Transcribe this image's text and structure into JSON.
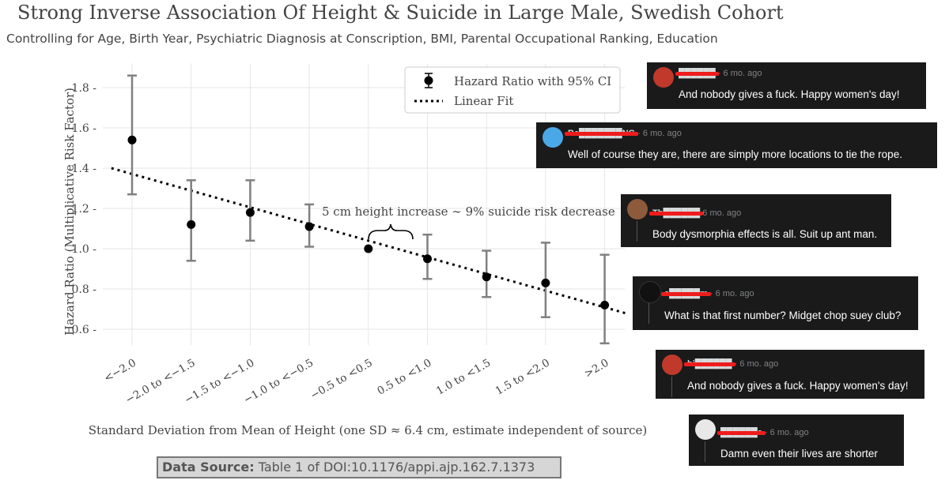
{
  "chart_data": {
    "type": "scatter",
    "title": "Strong Inverse Association Of Height & Suicide in Large Male, Swedish Cohort",
    "subtitle": "Controlling for Age, Birth Year, Psychiatric Diagnosis at Conscription, BMI, Parental Occupational Ranking, Education",
    "xlabel": "Standard Deviation from Mean of Height (one SD ≈ 6.4 cm, estimate independent of source)",
    "ylabel": "Hazard Ratio (Multiplicative Risk Factor)",
    "categories": [
      "<−2.0",
      "−2.0 to <−1.5",
      "−1.5 to <−1.0",
      "−1.0 to <−0.5",
      "−0.5 to <0.5",
      "0.5 to <1.0",
      "1.0 to <1.5",
      "1.5 to <2.0",
      ">2.0"
    ],
    "yticks": [
      "0.6",
      "0.8",
      "1.0",
      "1.2",
      "1.4",
      "1.6",
      "1.8"
    ],
    "ylim": [
      0.52,
      1.92
    ],
    "grid": true,
    "series": [
      {
        "name": "Hazard Ratio with 95% CI",
        "values": [
          1.54,
          1.12,
          1.18,
          1.11,
          1.0,
          0.95,
          0.86,
          0.83,
          0.72
        ],
        "ci_low": [
          1.27,
          0.94,
          1.04,
          1.01,
          1.0,
          0.85,
          0.76,
          0.66,
          0.53
        ],
        "ci_high": [
          1.86,
          1.34,
          1.34,
          1.22,
          1.0,
          1.07,
          0.99,
          1.03,
          0.97
        ],
        "color": "#000000",
        "errorbar_color": "#808080"
      },
      {
        "name": "Linear Fit",
        "style": "dotted",
        "color": "#000000",
        "fit_start": {
          "x": -0.35,
          "y": 1.4
        },
        "fit_end": {
          "x": 8.35,
          "y": 0.68
        }
      }
    ],
    "legend_position": "top-right",
    "annotation": "5 cm height increase ∼ 9% suicide risk decrease",
    "data_source_label": "Data Source:",
    "data_source": "Table 1 of DOI:10.1176/appi.ajp.162.7.1373"
  },
  "comments": [
    {
      "user": "██████",
      "time": "· 6 mo. ago",
      "text": "And nobody gives a fuck. Happy women's day!",
      "avatar_color": "#c0392b"
    },
    {
      "user": "Be███████NG",
      "time": "· 6 mo. ago",
      "text": "Well of course they are, there are simply more locations to tie the rope.",
      "avatar_color": "#4aa8e8"
    },
    {
      "user": "Th██████",
      "time": "6 mo. ago",
      "text": "Body dysmorphia effects is all. Suit up ant man.",
      "avatar_color": "#8e5a3c"
    },
    {
      "user": "a█████m",
      "time": "· 6 mo. ago",
      "text": "What is that first number? Midget chop suey club?",
      "avatar_color": "#111111"
    },
    {
      "user": "bi██████",
      "time": "· 6 mo. ago",
      "text": "And nobody gives a fuck. Happy women's day!",
      "avatar_color": "#c0392b"
    },
    {
      "user": "██████e",
      "time": "· 6 mo. ago",
      "text": "Damn even their lives are shorter",
      "avatar_color": "#e8e8e8"
    }
  ]
}
